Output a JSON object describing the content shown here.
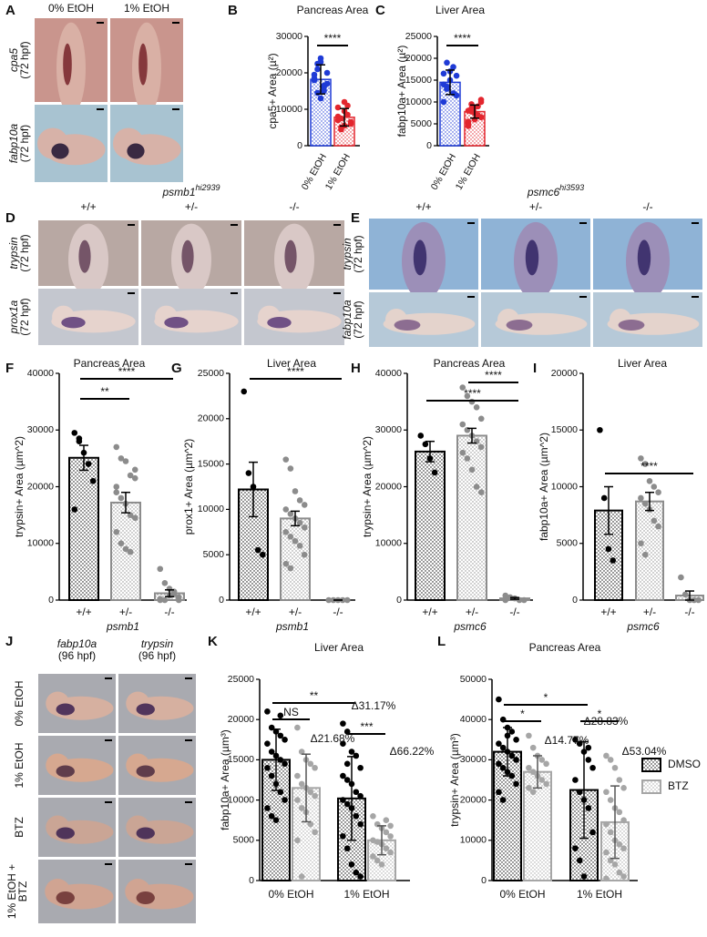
{
  "image_panels": [
    {
      "label": "A",
      "column_labels": [
        [
          "0% EtOH"
        ],
        [
          "1% EtOH"
        ]
      ],
      "row_labels": [
        [
          "cpa5",
          "(72 hpf)"
        ],
        [
          "fabp10a",
          "(72 hpf)"
        ]
      ]
    },
    {
      "label": "D",
      "gene": "psmb1",
      "allele": "hi2939",
      "column_labels": [
        [
          "+/+"
        ],
        [
          "+/-"
        ],
        [
          "-/-"
        ]
      ],
      "row_labels": [
        [
          "trypsin",
          "(72 hpf)"
        ],
        [
          "prox1a",
          "(72 hpf)"
        ]
      ]
    },
    {
      "label": "E",
      "gene": "psmc6",
      "allele": "hi3593",
      "column_labels": [
        [
          "+/+"
        ],
        [
          "+/-"
        ],
        [
          "-/-"
        ]
      ],
      "row_labels": [
        [
          "trypsin",
          "(72 hpf)"
        ],
        [
          "fabp10a",
          "(72 hpf)"
        ]
      ]
    },
    {
      "label": "J",
      "column_labels": [
        [
          "fabp10a",
          "(96 hpf)"
        ],
        [
          "trypsin",
          "(96 hpf)"
        ]
      ],
      "row_labels": [
        [
          "0% EtOH"
        ],
        [
          "1% EtOH"
        ],
        [
          "BTZ"
        ],
        [
          "1% EtOH +",
          "BTZ"
        ]
      ]
    }
  ],
  "chart_data": [
    {
      "type": "bar",
      "panel": "B",
      "title": "Pancreas Area",
      "ylabel": "cpa5+ Area (µ²)",
      "categories": [
        "0% EtOH",
        "1% EtOH"
      ],
      "values": [
        18200,
        7800
      ],
      "errors": [
        4000,
        2400
      ],
      "colors": [
        "#1f3bd6",
        "#e3262e"
      ],
      "points": [
        [
          18000,
          21000,
          24000,
          15000,
          17000,
          19500,
          22500,
          13000,
          16500,
          20000,
          18500,
          14500,
          23000,
          16000
        ],
        [
          8000,
          5000,
          9500,
          11000,
          6500,
          7000,
          4500,
          12000,
          8500,
          6000,
          10500,
          7500,
          5500
        ]
      ],
      "ylim": [
        0,
        30000
      ],
      "yticks": [
        0,
        10000,
        20000,
        30000
      ],
      "annotations": [
        "****"
      ]
    },
    {
      "type": "bar",
      "panel": "C",
      "title": "Liver Area",
      "ylabel": "fabp10a+ Area (µ²)",
      "categories": [
        "0% EtOH",
        "1% EtOH"
      ],
      "values": [
        14500,
        7800
      ],
      "errors": [
        2800,
        1500
      ],
      "colors": [
        "#1f3bd6",
        "#e3262e"
      ],
      "points": [
        [
          14000,
          19000,
          17000,
          12000,
          16000,
          10000,
          13500,
          15000,
          18000,
          11500,
          16500,
          13000
        ],
        [
          8000,
          9500,
          6000,
          7000,
          10000,
          5500,
          8500,
          7500,
          9000,
          6500,
          5000,
          7800,
          8800,
          6800,
          10500,
          4500
        ]
      ],
      "ylim": [
        0,
        25000
      ],
      "yticks": [
        0,
        5000,
        10000,
        15000,
        20000,
        25000
      ],
      "annotations": [
        "****"
      ]
    },
    {
      "type": "bar",
      "panel": "F",
      "title": "Pancreas Area",
      "ylabel": "trypsin+ Area (µm^2)",
      "xlabel": "psmb1",
      "categories": [
        "+/+",
        "+/-",
        "-/-"
      ],
      "values": [
        25100,
        17200,
        1200
      ],
      "errors": [
        2200,
        1800,
        600
      ],
      "colors": [
        "#000000",
        "#8c8c8c",
        "#8c8c8c"
      ],
      "points": [
        [
          29500,
          28000,
          26000,
          24000,
          21000,
          16000,
          28500
        ],
        [
          27000,
          25000,
          24500,
          22000,
          21500,
          20000,
          18000,
          17000,
          15000,
          14500,
          12000,
          10000,
          9000,
          8500,
          23000,
          19000
        ],
        [
          5500,
          3000,
          2000,
          1000,
          500,
          0,
          0,
          800,
          1500,
          0,
          200
        ]
      ],
      "ylim": [
        0,
        40000
      ],
      "yticks": [
        0,
        10000,
        20000,
        30000,
        40000
      ],
      "annotations": [
        "**",
        "****"
      ]
    },
    {
      "type": "bar",
      "panel": "G",
      "title": "Liver Area",
      "ylabel": "prox1+ Area (µm^2)",
      "xlabel": "psmb1",
      "categories": [
        "+/+",
        "+/-",
        "-/-"
      ],
      "values": [
        12200,
        9000,
        0
      ],
      "errors": [
        3000,
        800,
        0
      ],
      "colors": [
        "#000000",
        "#8c8c8c",
        "#8c8c8c"
      ],
      "points": [
        [
          23000,
          14000,
          12500,
          5500,
          5000
        ],
        [
          15500,
          14500,
          12000,
          11000,
          10500,
          10000,
          9500,
          9000,
          8500,
          8000,
          7500,
          7000,
          6500,
          6000,
          5000,
          4000,
          3500
        ],
        [
          0,
          0,
          0,
          0,
          0
        ]
      ],
      "ylim": [
        0,
        25000
      ],
      "yticks": [
        0,
        5000,
        10000,
        15000,
        20000,
        25000
      ],
      "annotations": [
        "****"
      ]
    },
    {
      "type": "bar",
      "panel": "H",
      "title": "Pancreas Area",
      "ylabel": "trypsin+ Area (µm^2)",
      "xlabel": "psmc6",
      "categories": [
        "+/+",
        "+/-",
        "-/-"
      ],
      "values": [
        26200,
        29000,
        300
      ],
      "errors": [
        1800,
        1300,
        150
      ],
      "colors": [
        "#000000",
        "#8c8c8c",
        "#8c8c8c"
      ],
      "points": [
        [
          29000,
          27500,
          25000,
          22500
        ],
        [
          37500,
          36000,
          35000,
          34000,
          32000,
          31000,
          30000,
          29000,
          28000,
          27000,
          26000,
          25000,
          23000,
          20000,
          19000
        ],
        [
          800,
          500,
          300,
          0,
          0,
          0
        ]
      ],
      "ylim": [
        0,
        40000
      ],
      "yticks": [
        0,
        10000,
        20000,
        30000,
        40000
      ],
      "annotations": [
        "****",
        "****"
      ]
    },
    {
      "type": "bar",
      "panel": "I",
      "title": "Liver Area",
      "ylabel": "fabp10a+ Area (µm^2)",
      "xlabel": "psmc6",
      "categories": [
        "+/+",
        "+/-",
        "-/-"
      ],
      "values": [
        7900,
        8700,
        400
      ],
      "errors": [
        2100,
        800,
        400
      ],
      "colors": [
        "#000000",
        "#8c8c8c",
        "#8c8c8c"
      ],
      "points": [
        [
          15000,
          9000,
          4500,
          3500
        ],
        [
          12500,
          12000,
          10500,
          10000,
          9500,
          9000,
          8500,
          8000,
          7000,
          6500,
          5000,
          4000
        ],
        [
          2000,
          500,
          0,
          0,
          0
        ]
      ],
      "ylim": [
        0,
        20000
      ],
      "yticks": [
        0,
        5000,
        10000,
        15000,
        20000
      ],
      "annotations": [
        "****"
      ]
    },
    {
      "type": "grouped-bar",
      "panel": "K",
      "title": "Liver Area",
      "ylabel": "fabp10a+ Area (µm³)",
      "categories": [
        "0% EtOH",
        "1% EtOH"
      ],
      "series": [
        {
          "color": "#000000",
          "values": [
            15000,
            10200
          ],
          "errors": [
            3800,
            5200
          ],
          "points": [
            [
              21000,
              19000,
              18500,
              18000,
              17500,
              17000,
              16000,
              15500,
              15000,
              14500,
              14000,
              13000,
              12000,
              11000,
              10000,
              9000,
              8000,
              7500,
              20500
            ],
            [
              19500,
              18500,
              16000,
              15500,
              14000,
              13000,
              12500,
              12000,
              11000,
              10500,
              10000,
              9500,
              9000,
              8000,
              7000,
              5500,
              4000,
              2000,
              1000,
              500,
              17000,
              14500
            ]
          ]
        },
        {
          "color": "#a6a6a6",
          "values": [
            11500,
            5000
          ],
          "errors": [
            4200,
            1800
          ],
          "points": [
            [
              19000,
              16000,
              15000,
              14500,
              14000,
              13000,
              12000,
              11500,
              11000,
              10500,
              10000,
              9000,
              8500,
              7000,
              6000,
              5000,
              500
            ],
            [
              8000,
              7000,
              6500,
              6000,
              5500,
              5000,
              4800,
              4500,
              4000,
              3500,
              3000,
              2500,
              2000,
              7500,
              6800
            ]
          ]
        }
      ],
      "ylim": [
        0,
        25000
      ],
      "yticks": [
        0,
        5000,
        10000,
        15000,
        20000,
        25000
      ],
      "annotations": [
        "NS",
        "**",
        "***",
        "Δ21.68%",
        "Δ31.17%",
        "Δ66.22%"
      ]
    },
    {
      "type": "grouped-bar",
      "panel": "L",
      "title": "Pancreas Area",
      "ylabel": "trypsin+ Area (µm³)",
      "categories": [
        "0% EtOH",
        "1% EtOH"
      ],
      "series": [
        {
          "name": "DMSO",
          "color": "#000000",
          "values": [
            32000,
            22500
          ],
          "errors": [
            6000,
            12000
          ],
          "points": [
            [
              45000,
              40000,
              38000,
              37000,
              35000,
              34000,
              33000,
              32000,
              31000,
              30000,
              29000,
              28000,
              27000,
              26000,
              24000,
              22000,
              20000,
              36000
            ],
            [
              35000,
              34000,
              32000,
              30000,
              28000,
              25000,
              22000,
              20000,
              18000,
              12000,
              8000,
              5000,
              1000,
              33000
            ]
          ]
        },
        {
          "name": "BTZ",
          "color": "#a6a6a6",
          "values": [
            27000,
            14500
          ],
          "errors": [
            4000,
            9000
          ],
          "points": [
            [
              36000,
              33000,
              31000,
              30000,
              29000,
              28000,
              27000,
              26000,
              25000,
              24000,
              23000,
              22000
            ],
            [
              31000,
              30000,
              28000,
              25000,
              23000,
              22000,
              20000,
              18000,
              17000,
              15000,
              14000,
              12000,
              10000,
              9000,
              8000,
              7000,
              5000,
              4000,
              2000,
              1000,
              500
            ]
          ]
        }
      ],
      "ylim": [
        0,
        50000
      ],
      "yticks": [
        0,
        10000,
        20000,
        30000,
        40000,
        50000
      ],
      "annotations": [
        "*",
        "*",
        "*",
        "Δ14.77%",
        "Δ28.83%",
        "Δ53.04%"
      ]
    }
  ]
}
